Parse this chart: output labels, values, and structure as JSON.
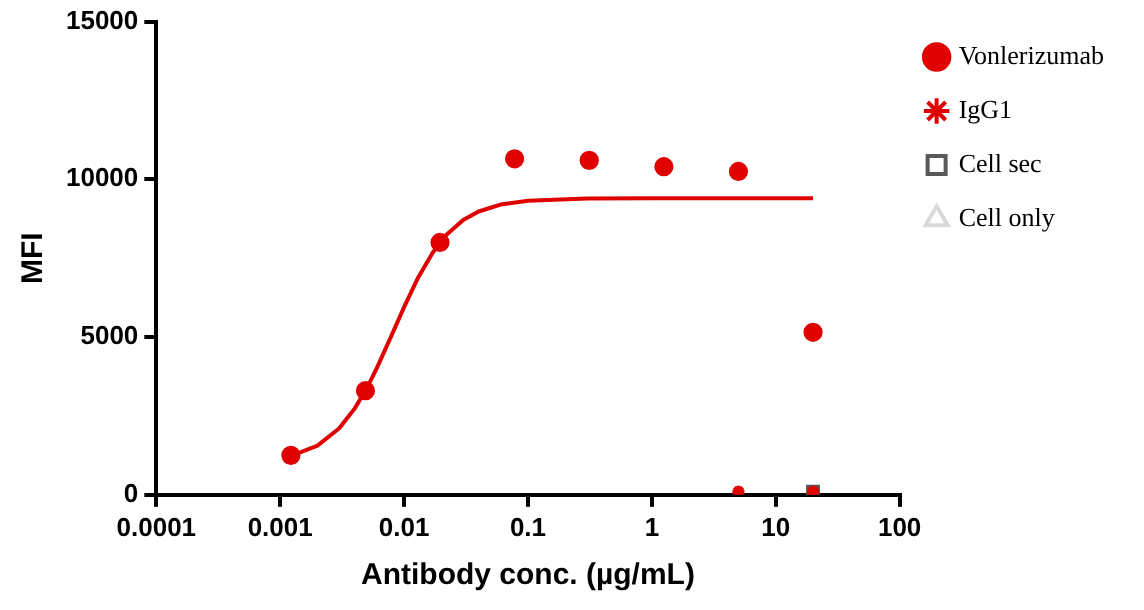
{
  "chart_data": {
    "type": "scatter",
    "xlabel": "Antibody conc. (µg/mL)",
    "ylabel": "MFI",
    "log": "x",
    "xlim": [
      0.0001,
      100
    ],
    "xticks": [
      0.0001,
      0.001,
      0.01,
      0.1,
      1,
      10,
      100
    ],
    "ylim": [
      0,
      15000
    ],
    "yticks": [
      0,
      5000,
      10000,
      15000
    ],
    "grid": false,
    "legend": "right",
    "series": [
      {
        "name": "Vonlerizumab",
        "marker": "circle",
        "color": "#e00000",
        "x": [
          0.00122,
          0.00488,
          0.0195,
          0.078,
          0.3125,
          1.25,
          5,
          20
        ],
        "values": [
          1250,
          3300,
          8000,
          10650,
          10600,
          10400,
          10250,
          5150
        ]
      },
      {
        "type": "line",
        "marker": "none",
        "color": "#e00000",
        "x": [
          0.00122,
          0.002,
          0.003,
          0.004,
          0.005,
          0.006,
          0.008,
          0.01,
          0.013,
          0.017,
          0.022,
          0.03,
          0.04,
          0.06,
          0.1,
          0.3,
          1,
          5,
          20
        ],
        "values": [
          1230,
          1560,
          2110,
          2740,
          3380,
          4000,
          5090,
          5950,
          6890,
          7670,
          8240,
          8710,
          8980,
          9200,
          9320,
          9390,
          9400,
          9400,
          9400
        ]
      },
      {
        "name": "IgG1",
        "marker": "cross",
        "color": "#e00000",
        "x": [
          5,
          20
        ],
        "values": [
          100,
          100
        ]
      },
      {
        "name": "Cell sec",
        "marker": "square",
        "color": "#595959",
        "x": [
          20
        ],
        "values": [
          100
        ]
      },
      {
        "name": "Cell only",
        "marker": "triangle",
        "color": "#d9d9d9"
      }
    ]
  }
}
